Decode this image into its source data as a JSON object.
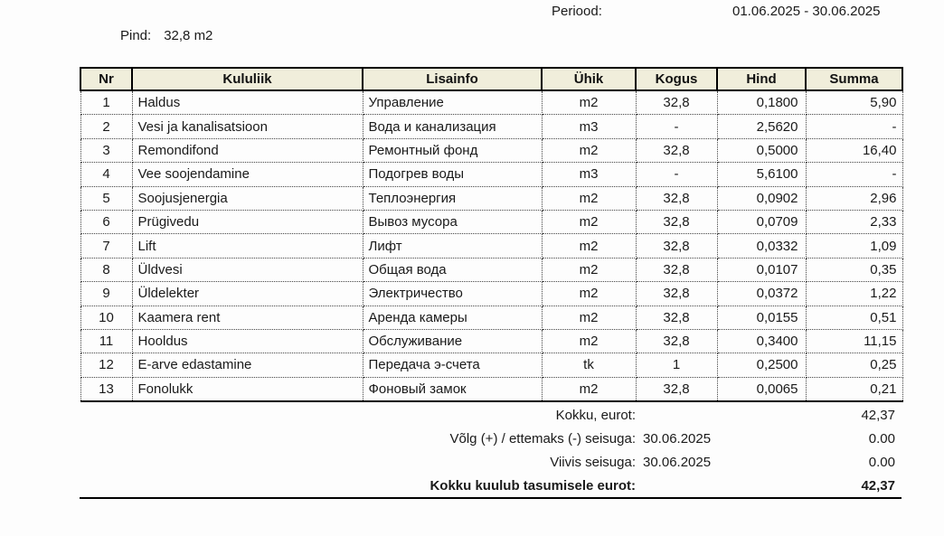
{
  "header": {
    "periood_label": "Periood:",
    "periood_value": "01.06.2025 - 30.06.2025",
    "pind_label": "Pind:",
    "pind_value": "32,8 m2"
  },
  "table": {
    "columns": [
      "Nr",
      "Kululiik",
      "Lisainfo",
      "Ühik",
      "Kogus",
      "Hind",
      "Summa"
    ],
    "rows": [
      [
        "1",
        "Haldus",
        "Управление",
        "m2",
        "32,8",
        "0,1800",
        "5,90"
      ],
      [
        "2",
        "Vesi ja kanalisatsioon",
        "Вода и канализация",
        "m3",
        "-",
        "2,5620",
        "-"
      ],
      [
        "3",
        "Remondifond",
        "Ремонтный фонд",
        "m2",
        "32,8",
        "0,5000",
        "16,40"
      ],
      [
        "4",
        "Vee soojendamine",
        "Подогрев воды",
        "m3",
        "-",
        "5,6100",
        "-"
      ],
      [
        "5",
        "Soojusjenergia",
        "Теплоэнергия",
        "m2",
        "32,8",
        "0,0902",
        "2,96"
      ],
      [
        "6",
        "Prügivedu",
        "Вывоз мусора",
        "m2",
        "32,8",
        "0,0709",
        "2,33"
      ],
      [
        "7",
        "Lift",
        "Лифт",
        "m2",
        "32,8",
        "0,0332",
        "1,09"
      ],
      [
        "8",
        "Üldvesi",
        "Общая вода",
        "m2",
        "32,8",
        "0,0107",
        "0,35"
      ],
      [
        "9",
        "Üldelekter",
        "Электричество",
        "m2",
        "32,8",
        "0,0372",
        "1,22"
      ],
      [
        "10",
        "Kaamera rent",
        "Аренда камеры",
        "m2",
        "32,8",
        "0,0155",
        "0,51"
      ],
      [
        "11",
        "Hooldus",
        "Обслуживание",
        "m2",
        "32,8",
        "0,3400",
        "11,15"
      ],
      [
        "12",
        "E-arve edastamine",
        "Передача э-счета",
        "tk",
        "1",
        "0,2500",
        "0,25"
      ],
      [
        "13",
        "Fonolukk",
        "Фоновый замок",
        "m2",
        "32,8",
        "0,0065",
        "0,21"
      ]
    ]
  },
  "summary": {
    "rows": [
      {
        "label": "Kokku, eurot:",
        "date": "",
        "value": "42,37",
        "bold": false
      },
      {
        "label": "Võlg (+) / ettemaks (-) seisuga:",
        "date": "30.06.2025",
        "value": "0.00",
        "bold": false
      },
      {
        "label": "Viivis seisuga:",
        "date": "30.06.2025",
        "value": "0.00",
        "bold": false
      },
      {
        "label": "Kokku kuulub tasumisele eurot:",
        "date": "",
        "value": "42,37",
        "bold": true
      }
    ]
  },
  "colors": {
    "header_bg": "#f0eedb",
    "border": "#000000",
    "text": "#1a1a1a"
  }
}
